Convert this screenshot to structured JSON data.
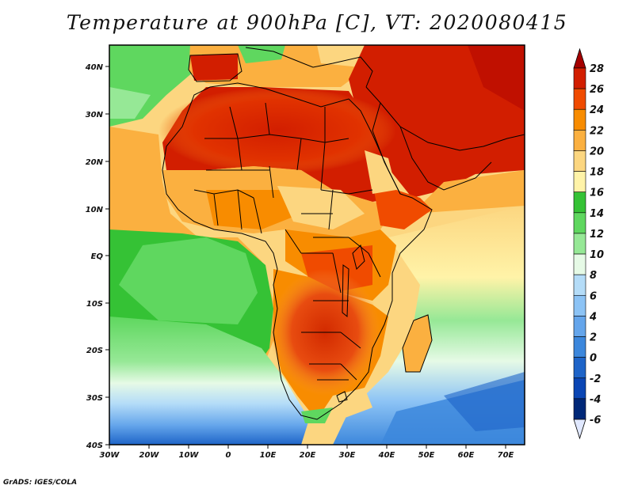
{
  "title": "Temperature at 900hPa [C], VT: 2020080415",
  "credit": "GrADS: IGES/COLA",
  "map": {
    "lon_labels": [
      "30W",
      "20W",
      "10W",
      "0",
      "10E",
      "20E",
      "30E",
      "40E",
      "50E",
      "60E",
      "70E"
    ],
    "lat_labels": [
      "40N",
      "30N",
      "20N",
      "10N",
      "EQ",
      "10S",
      "20S",
      "30S",
      "40S"
    ],
    "field": "Temperature at 900hPa",
    "units": "C",
    "lon_range": [
      -30,
      75
    ],
    "lat_range": [
      -40,
      45
    ]
  },
  "colorbar": {
    "labels": [
      "28",
      "26",
      "24",
      "22",
      "20",
      "18",
      "16",
      "14",
      "12",
      "10",
      "8",
      "6",
      "4",
      "2",
      "0",
      "-2",
      "-4",
      "-6"
    ],
    "colors": [
      "#a50000",
      "#d21e00",
      "#f04b00",
      "#f88c00",
      "#fbb040",
      "#fcd680",
      "#fff3a8",
      "#35c235",
      "#5fd75f",
      "#96e896",
      "#e6fae6",
      "#b4dcf8",
      "#8cc3f5",
      "#64a5eb",
      "#3c87dc",
      "#1e64c8",
      "#0a46b4",
      "#002878",
      "#08105a"
    ],
    "above_color": "#a50000",
    "below_color": "#e0e8ff"
  }
}
